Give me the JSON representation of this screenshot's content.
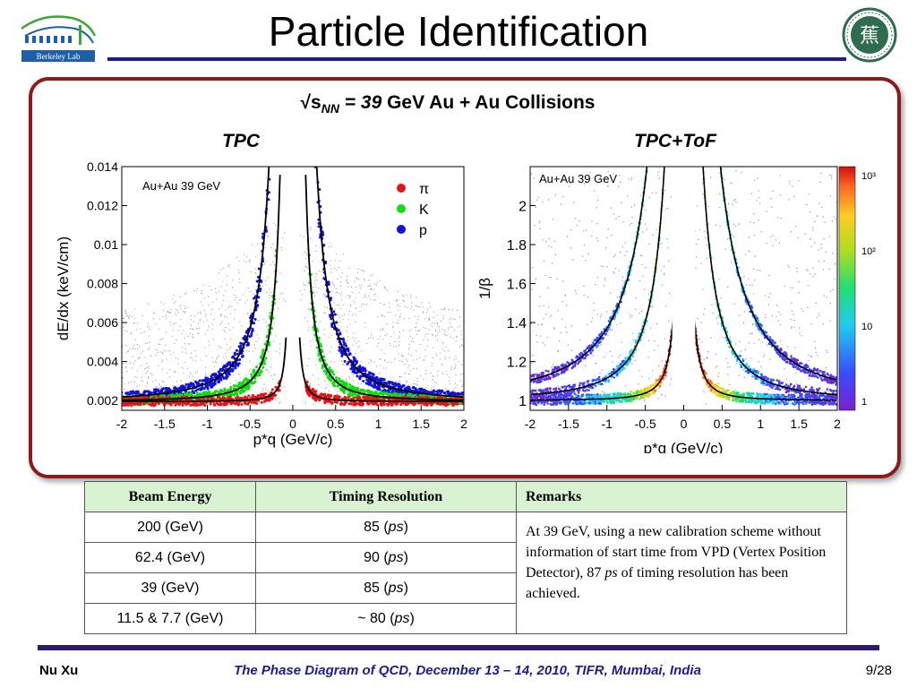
{
  "header": {
    "title": "Particle Identification",
    "logo_left_text": "Berkeley Lab",
    "logo_right_chars": "蕉"
  },
  "panel": {
    "collision_prefix": "√s",
    "collision_sub": "NN",
    "collision_eq": " = 39",
    "collision_rest": " GeV Au + Au Collisions",
    "left_label": "TPC",
    "right_label": "TPC+ToF"
  },
  "chart_data": [
    {
      "type": "scatter",
      "title": "",
      "annotation": "Au+Au 39 GeV",
      "xlabel": "p*q (GeV/c)",
      "ylabel": "dE/dx (keV/cm)",
      "xlim": [
        -2,
        2
      ],
      "ylim": [
        0.0015,
        0.014
      ],
      "xticks": [
        "-2",
        "-1.5",
        "-1",
        "-0.5",
        "0",
        "0.5",
        "1",
        "1.5",
        "2"
      ],
      "yticks": [
        "0.002",
        "0.004",
        "0.006",
        "0.008",
        "0.01",
        "0.012",
        "0.014"
      ],
      "legend": [
        {
          "name": "π",
          "color": "#ee1111"
        },
        {
          "name": "K",
          "color": "#11dd11"
        },
        {
          "name": "p",
          "color": "#1111dd"
        }
      ],
      "legend_position": "top-right",
      "grid": false
    },
    {
      "type": "heatmap",
      "title": "",
      "annotation": "Au+Au 39 GeV",
      "xlabel": "p*q (GeV/c)",
      "ylabel": "1/β",
      "xlim": [
        -2,
        2
      ],
      "ylim": [
        0.95,
        2.2
      ],
      "xticks": [
        "-2",
        "-1.5",
        "-1",
        "-0.5",
        "0",
        "0.5",
        "1",
        "1.5",
        "2"
      ],
      "yticks": [
        "1",
        "1.2",
        "1.4",
        "1.6",
        "1.8",
        "2"
      ],
      "colorbar_ticks": [
        "1",
        "10",
        "10²",
        "10³"
      ],
      "colorbar_scale": "log",
      "grid": false
    }
  ],
  "table": {
    "headers": [
      "Beam Energy",
      "Timing Resolution",
      "Remarks"
    ],
    "rows": [
      {
        "energy": "200 (GeV)",
        "res_value": "85 (",
        "res_unit": "ps",
        "res_close": ")"
      },
      {
        "energy": "62.4 (GeV)",
        "res_value": "90 (",
        "res_unit": "ps",
        "res_close": ")"
      },
      {
        "energy": "39 (GeV)",
        "res_value": "85 (",
        "res_unit": "ps",
        "res_close": ")"
      },
      {
        "energy": "11.5 & 7.7 (GeV)",
        "res_value": "~ 80 (",
        "res_unit": "ps",
        "res_close": ")"
      }
    ],
    "remarks_pre": "At 39 GeV, using a new calibration scheme without information of start time from VPD (Vertex Position Detector), 87 ",
    "remarks_unit": "ps",
    "remarks_post": " of timing resolution has been achieved."
  },
  "footer": {
    "author": "Nu Xu",
    "event": "The Phase Diagram of QCD, December 13 – 14, 2010, TIFR, Mumbai, India",
    "page": "9/28"
  }
}
